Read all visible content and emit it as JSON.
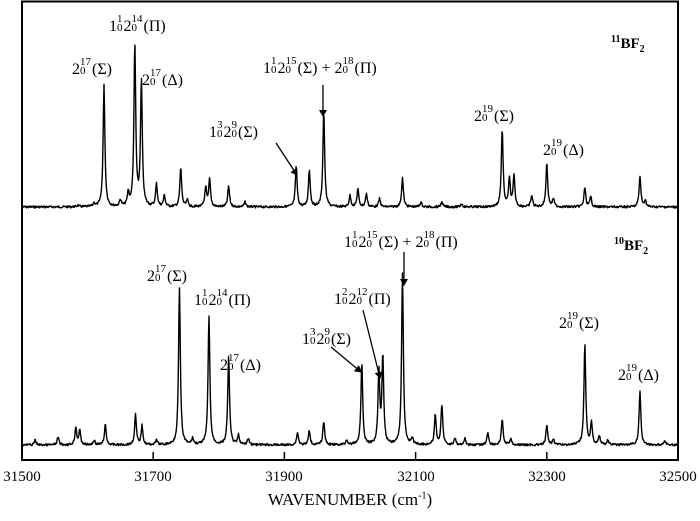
{
  "chart_data": {
    "type": "line",
    "title": "",
    "xlabel": "WAVENUMBER (cm-1)",
    "xlabel_main": "WAVENUMBER (cm",
    "xlabel_sup": "-1",
    "xlabel_close": ")",
    "ylabel": "",
    "xlim": [
      31500,
      32500
    ],
    "xticks": [
      31500,
      31700,
      31900,
      32100,
      32300,
      32500
    ],
    "xtick_labels": [
      "31500",
      "31700",
      "31900",
      "32100",
      "32300",
      "32500"
    ],
    "grid": false,
    "legend": "none",
    "series": [
      {
        "name": "11BF2",
        "panel": "top",
        "label_sup": "11",
        "label_main": "BF",
        "label_sub": "2",
        "peaks": [
          {
            "x": 31585,
            "y": 0.01
          },
          {
            "x": 31610,
            "y": 0.02
          },
          {
            "x": 31625,
            "y": 0.75
          },
          {
            "x": 31650,
            "y": 0.04
          },
          {
            "x": 31662,
            "y": 0.08
          },
          {
            "x": 31672,
            "y": 1.0
          },
          {
            "x": 31682,
            "y": 0.77
          },
          {
            "x": 31705,
            "y": 0.14
          },
          {
            "x": 31717,
            "y": 0.07
          },
          {
            "x": 31742,
            "y": 0.24
          },
          {
            "x": 31752,
            "y": 0.04
          },
          {
            "x": 31780,
            "y": 0.12
          },
          {
            "x": 31786,
            "y": 0.17
          },
          {
            "x": 31815,
            "y": 0.13
          },
          {
            "x": 31840,
            "y": 0.03
          },
          {
            "x": 31918,
            "y": 0.25
          },
          {
            "x": 31938,
            "y": 0.23
          },
          {
            "x": 31960,
            "y": 0.59
          },
          {
            "x": 32000,
            "y": 0.07
          },
          {
            "x": 32012,
            "y": 0.11
          },
          {
            "x": 32025,
            "y": 0.08
          },
          {
            "x": 32045,
            "y": 0.05
          },
          {
            "x": 32080,
            "y": 0.18
          },
          {
            "x": 32108,
            "y": 0.03
          },
          {
            "x": 32140,
            "y": 0.03
          },
          {
            "x": 32170,
            "y": 0.02
          },
          {
            "x": 32232,
            "y": 0.48
          },
          {
            "x": 32243,
            "y": 0.17
          },
          {
            "x": 32250,
            "y": 0.19
          },
          {
            "x": 32277,
            "y": 0.07
          },
          {
            "x": 32300,
            "y": 0.27
          },
          {
            "x": 32310,
            "y": 0.05
          },
          {
            "x": 32358,
            "y": 0.12
          },
          {
            "x": 32367,
            "y": 0.06
          },
          {
            "x": 32442,
            "y": 0.19
          },
          {
            "x": 32450,
            "y": 0.04
          }
        ]
      },
      {
        "name": "10BF2",
        "panel": "bottom",
        "label_sup": "10",
        "label_main": "BF",
        "label_sub": "2",
        "peaks": [
          {
            "x": 31520,
            "y": 0.03
          },
          {
            "x": 31555,
            "y": 0.05
          },
          {
            "x": 31582,
            "y": 0.11
          },
          {
            "x": 31588,
            "y": 0.09
          },
          {
            "x": 31610,
            "y": 0.03
          },
          {
            "x": 31627,
            "y": 0.13
          },
          {
            "x": 31673,
            "y": 0.19
          },
          {
            "x": 31683,
            "y": 0.12
          },
          {
            "x": 31705,
            "y": 0.03
          },
          {
            "x": 31740,
            "y": 1.0
          },
          {
            "x": 31760,
            "y": 0.04
          },
          {
            "x": 31785,
            "y": 0.82
          },
          {
            "x": 31815,
            "y": 0.56
          },
          {
            "x": 31830,
            "y": 0.06
          },
          {
            "x": 31845,
            "y": 0.04
          },
          {
            "x": 31920,
            "y": 0.08
          },
          {
            "x": 31938,
            "y": 0.09
          },
          {
            "x": 31960,
            "y": 0.15
          },
          {
            "x": 31995,
            "y": 0.03
          },
          {
            "x": 32018,
            "y": 0.52
          },
          {
            "x": 32044,
            "y": 0.46
          },
          {
            "x": 32050,
            "y": 0.56
          },
          {
            "x": 32080,
            "y": 1.08
          },
          {
            "x": 32095,
            "y": 0.04
          },
          {
            "x": 32130,
            "y": 0.19
          },
          {
            "x": 32140,
            "y": 0.25
          },
          {
            "x": 32160,
            "y": 0.04
          },
          {
            "x": 32175,
            "y": 0.04
          },
          {
            "x": 32210,
            "y": 0.08
          },
          {
            "x": 32232,
            "y": 0.16
          },
          {
            "x": 32245,
            "y": 0.04
          },
          {
            "x": 32300,
            "y": 0.12
          },
          {
            "x": 32310,
            "y": 0.04
          },
          {
            "x": 32358,
            "y": 0.64
          },
          {
            "x": 32368,
            "y": 0.14
          },
          {
            "x": 32380,
            "y": 0.06
          },
          {
            "x": 32393,
            "y": 0.03
          },
          {
            "x": 32442,
            "y": 0.34
          },
          {
            "x": 32480,
            "y": 0.03
          }
        ]
      }
    ],
    "annotations": [
      {
        "panel": "top",
        "text": "2_0^17(Σ)",
        "x": 31625
      },
      {
        "panel": "top",
        "text": "1_0^1 2_0^14(Π)",
        "x": 31672
      },
      {
        "panel": "top",
        "text": "2_0^17(Δ)",
        "x": 31682
      },
      {
        "panel": "top",
        "text": "1_0^3 2_0^9(Σ)",
        "x": 31918,
        "arrow": true
      },
      {
        "panel": "top",
        "text": "1_0^1 2_0^15(Σ) + 2_0^18(Π)",
        "x": 31960,
        "arrow": true
      },
      {
        "panel": "top",
        "text": "2_0^19(Σ)",
        "x": 32232
      },
      {
        "panel": "top",
        "text": "2_0^19(Δ)",
        "x": 32300
      },
      {
        "panel": "bottom",
        "text": "2_0^17(Σ)",
        "x": 31740
      },
      {
        "panel": "bottom",
        "text": "1_0^1 2_0^14(Π)",
        "x": 31785
      },
      {
        "panel": "bottom",
        "text": "2_0^17(Δ)",
        "x": 31815
      },
      {
        "panel": "bottom",
        "text": "1_0^3 2_0^9(Σ)",
        "x": 32018,
        "arrow": true
      },
      {
        "panel": "bottom",
        "text": "1_0^2 2_0^12(Π)",
        "x": 32050,
        "arrow": true
      },
      {
        "panel": "bottom",
        "text": "1_0^1 2_0^15(Σ) + 2_0^18(Π)",
        "x": 32080,
        "arrow": true
      },
      {
        "panel": "bottom",
        "text": "2_0^19(Σ)",
        "x": 32358
      },
      {
        "panel": "bottom",
        "text": "2_0^19(Δ)",
        "x": 32442
      }
    ]
  },
  "labels": {
    "top": {
      "a1": {
        "pre": "",
        "n1": "",
        "s1": "",
        "b1": "2",
        "sup1": "17",
        "sub1": "0",
        "tail": "(Σ)"
      },
      "a2": {
        "pre": "1",
        "sup0": "1",
        "sub0": "0",
        "b1": "2",
        "sup1": "14",
        "sub1": "0",
        "tail": "(Π)"
      },
      "a3": {
        "b1": "2",
        "sup1": "17",
        "sub1": "0",
        "tail": "(Δ)"
      },
      "a4": {
        "pre": "1",
        "sup0": "3",
        "sub0": "0",
        "b1": "2",
        "sup1": "9",
        "sub1": "0",
        "tail": "(Σ)"
      },
      "a5": {
        "pre": "1",
        "sup0": "1",
        "sub0": "0",
        "b1": "2",
        "sup1": "15",
        "sub1": "0",
        "tail": "(Σ) + 2",
        "sup2": "18",
        "sub2": "0",
        "tail2": "(Π)"
      },
      "a6": {
        "b1": "2",
        "sup1": "19",
        "sub1": "0",
        "tail": "(Σ)"
      },
      "a7": {
        "b1": "2",
        "sup1": "19",
        "sub1": "0",
        "tail": "(Δ)"
      }
    },
    "bottom": {
      "a1": {
        "b1": "2",
        "sup1": "17",
        "sub1": "0",
        "tail": "(Σ)"
      },
      "a2": {
        "pre": "1",
        "sup0": "1",
        "sub0": "0",
        "b1": "2",
        "sup1": "14",
        "sub1": "0",
        "tail": "(Π)"
      },
      "a3": {
        "b1": "2",
        "sup1": "17",
        "sub1": "0",
        "tail": "(Δ)"
      },
      "a4": {
        "pre": "1",
        "sup0": "3",
        "sub0": "0",
        "b1": "2",
        "sup1": "9",
        "sub1": "0",
        "tail": "(Σ)"
      },
      "a5": {
        "pre": "1",
        "sup0": "2",
        "sub0": "0",
        "b1": "2",
        "sup1": "12",
        "sub1": "0",
        "tail": "(Π)"
      },
      "a6": {
        "pre": "1",
        "sup0": "1",
        "sub0": "0",
        "b1": "2",
        "sup1": "15",
        "sub1": "0",
        "tail": "(Σ) + 2",
        "sup2": "18",
        "sub2": "0",
        "tail2": "(Π)"
      },
      "a7": {
        "b1": "2",
        "sup1": "19",
        "sub1": "0",
        "tail": "(Σ)"
      },
      "a8": {
        "b1": "2",
        "sup1": "19",
        "sub1": "0",
        "tail": "(Δ)"
      }
    }
  },
  "colors": {
    "line": "#000000",
    "background": "#ffffff"
  }
}
